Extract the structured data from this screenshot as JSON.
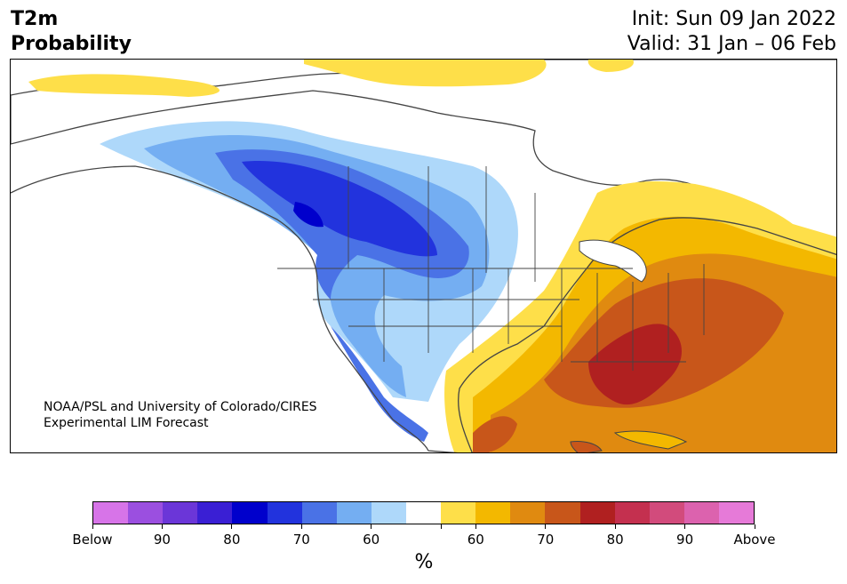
{
  "header": {
    "title_line1": "T2m",
    "title_line2": "Probability",
    "init": "Init: Sun 09 Jan 2022",
    "valid": "Valid: 31 Jan – 06 Feb"
  },
  "credit": {
    "line1": "NOAA/PSL and University of Colorado/CIRES",
    "line2": "Experimental LIM Forecast"
  },
  "colorbar": {
    "colors": [
      "#d774e8",
      "#9b4fe0",
      "#6b36d8",
      "#3a1fd4",
      "#0000cc",
      "#2233dd",
      "#4a72e6",
      "#74aef2",
      "#aed8fa",
      "#ffffff",
      "#fedf49",
      "#f3b800",
      "#e08a10",
      "#c8561a",
      "#b02020",
      "#c4304f",
      "#d24b7c",
      "#dc62ae",
      "#e67ad8"
    ],
    "labels": [
      "Below",
      "90",
      "80",
      "70",
      "60",
      "",
      "60",
      "70",
      "80",
      "90",
      "Above"
    ],
    "unit": "%"
  },
  "legend_scale": {
    "below_colors": [
      "#aed8fa",
      "#74aef2",
      "#4a72e6",
      "#2233dd",
      "#0000cc"
    ],
    "above_colors": [
      "#fedf49",
      "#f3b800",
      "#e08a10",
      "#c8561a",
      "#b02020"
    ]
  }
}
